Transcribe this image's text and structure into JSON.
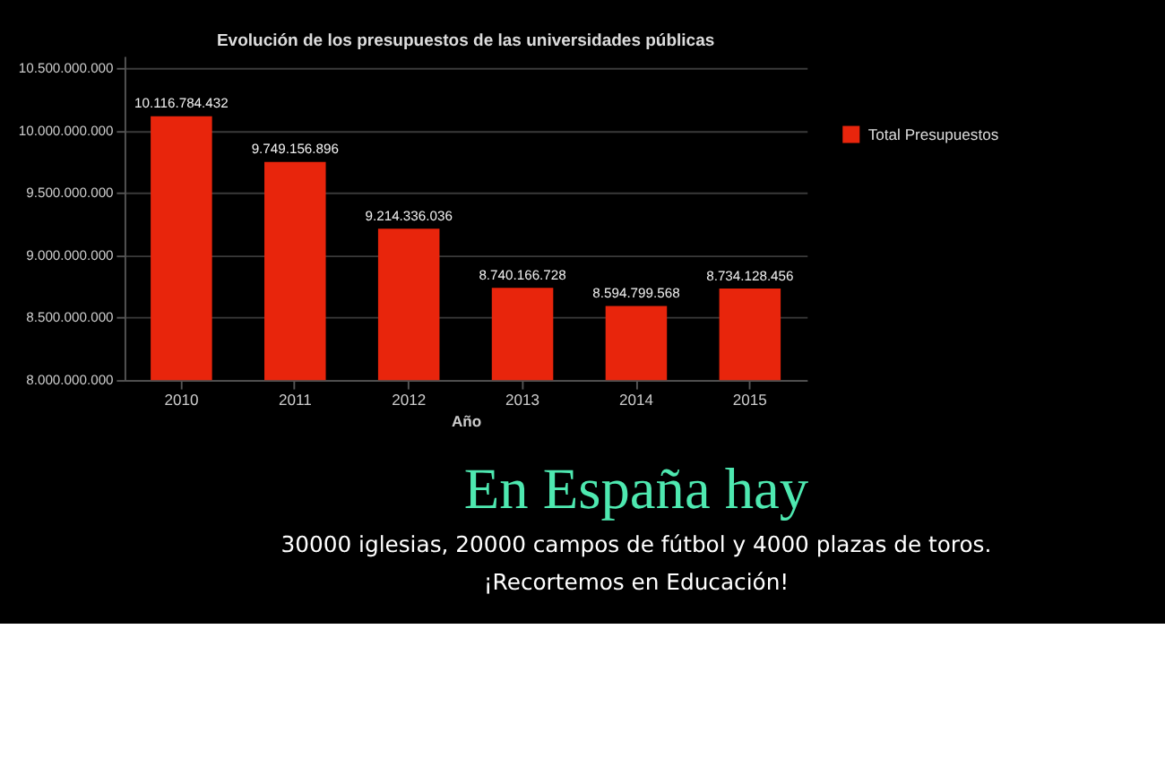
{
  "chart_data": {
    "type": "bar",
    "title": "Evolución de los presupuestos de las universidades públicas",
    "xlabel": "Año",
    "categories": [
      "2010",
      "2011",
      "2012",
      "2013",
      "2014",
      "2015"
    ],
    "series": [
      {
        "name": "Total Presupuestos",
        "color": "#e8250c",
        "values": [
          10116784432,
          9749156896,
          9214336036,
          8740166728,
          8594799568,
          8734128456
        ],
        "value_labels": [
          "10.116.784.432",
          "9.749.156.896",
          "9.214.336.036",
          "8.740.166.728",
          "8.594.799.568",
          "8.734.128.456"
        ]
      }
    ],
    "ylim": [
      8000000000,
      10600000000
    ],
    "yticks": [
      {
        "value": 8000000000,
        "label": "8.000.000.000"
      },
      {
        "value": 8500000000,
        "label": "8.500.000.000"
      },
      {
        "value": 9000000000,
        "label": "9.000.000.000"
      },
      {
        "value": 9500000000,
        "label": "9.500.000.000"
      },
      {
        "value": 10000000000,
        "label": "10.000.000.000"
      },
      {
        "value": 10500000000,
        "label": "10.500.000.000"
      }
    ],
    "grid": "y",
    "legend": "right",
    "annotations": [
      "En España hay",
      "30000 iglesias, 20000 campos de fútbol y 4000 plazas de toros.",
      "¡Recortemos en Educación!"
    ]
  }
}
